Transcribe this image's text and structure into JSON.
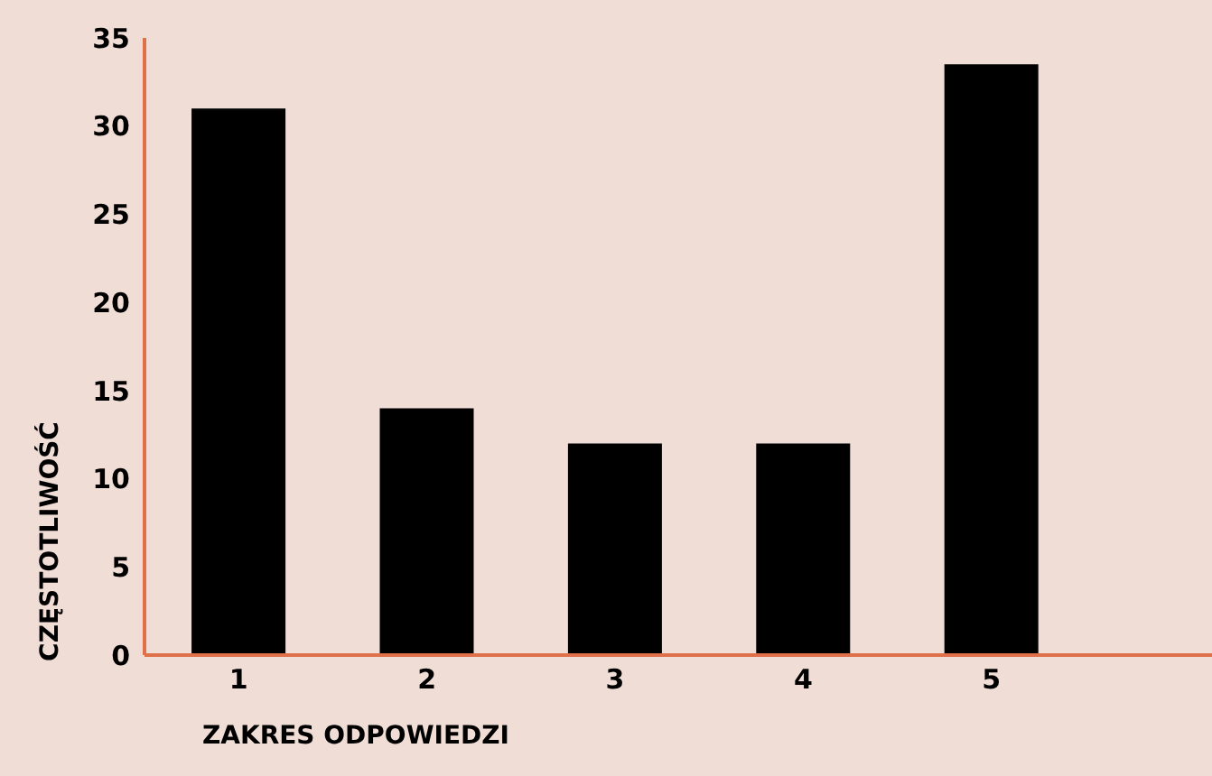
{
  "chart_data": {
    "type": "bar",
    "xlabel": "ZAKRES ODPOWIEDZI",
    "ylabel": "CZĘSTOTLIWOŚĆ",
    "categories": [
      "1",
      "2",
      "3",
      "4",
      "5"
    ],
    "values": [
      31,
      14,
      12,
      12,
      33.5
    ],
    "color": "#000000",
    "ylim": [
      0,
      35
    ],
    "yticks": [
      0,
      5,
      10,
      15,
      20,
      25,
      30,
      35
    ],
    "grid": false,
    "legend": false
  }
}
